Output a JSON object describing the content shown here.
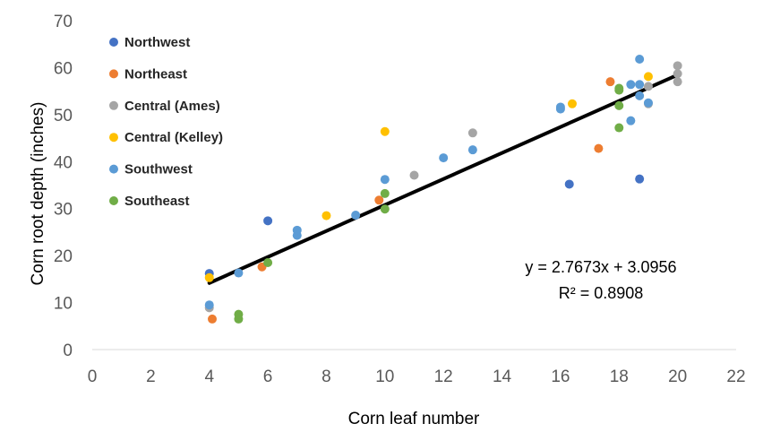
{
  "chart_data": {
    "type": "scatter",
    "xlabel": "Corn leaf number",
    "ylabel": "Corn root depth (inches)",
    "xlim": [
      0,
      22
    ],
    "ylim": [
      0,
      70
    ],
    "xticks": [
      "0",
      "2",
      "4",
      "6",
      "8",
      "10",
      "12",
      "14",
      "16",
      "18",
      "20",
      "22"
    ],
    "yticks": [
      "0",
      "10",
      "20",
      "30",
      "40",
      "50",
      "60",
      "70"
    ],
    "grid": false,
    "legend": "top-left",
    "series": [
      {
        "name": "Northwest",
        "color": "#4472C4",
        "points": [
          [
            4,
            16.2
          ],
          [
            6,
            27.4
          ],
          [
            16.3,
            35.2
          ],
          [
            18.7,
            36.3
          ]
        ]
      },
      {
        "name": "Northeast",
        "color": "#ED7D31",
        "points": [
          [
            4.1,
            6.5
          ],
          [
            5.8,
            17.6
          ],
          [
            9.8,
            31.8
          ],
          [
            17.3,
            42.8
          ],
          [
            17.7,
            57.0
          ]
        ]
      },
      {
        "name": "Central (Ames)",
        "color": "#A5A5A5",
        "points": [
          [
            4,
            8.9
          ],
          [
            11,
            37.1
          ],
          [
            13,
            46.1
          ],
          [
            19,
            52.3
          ],
          [
            19,
            56.0
          ],
          [
            20,
            57.0
          ],
          [
            20,
            60.4
          ],
          [
            20,
            58.7
          ]
        ]
      },
      {
        "name": "Central (Kelley)",
        "color": "#FFC000",
        "points": [
          [
            4,
            15.3
          ],
          [
            8,
            28.5
          ],
          [
            10,
            46.4
          ],
          [
            16.4,
            52.3
          ],
          [
            19,
            58.1
          ]
        ]
      },
      {
        "name": "Southwest",
        "color": "#5B9BD5",
        "points": [
          [
            4,
            9.5
          ],
          [
            5,
            16.3
          ],
          [
            7,
            24.3
          ],
          [
            7,
            25.4
          ],
          [
            9,
            28.6
          ],
          [
            10,
            36.2
          ],
          [
            12,
            40.8
          ],
          [
            13,
            42.5
          ],
          [
            16,
            51.2
          ],
          [
            16,
            51.6
          ],
          [
            18.4,
            48.7
          ],
          [
            18.4,
            56.4
          ],
          [
            18.7,
            56.4
          ],
          [
            18.7,
            54.0
          ],
          [
            18.7,
            61.8
          ],
          [
            19,
            52.5
          ]
        ]
      },
      {
        "name": "Southeast",
        "color": "#70AD47",
        "points": [
          [
            5,
            6.5
          ],
          [
            5,
            7.5
          ],
          [
            6,
            18.5
          ],
          [
            10,
            29.9
          ],
          [
            10,
            33.2
          ],
          [
            18,
            47.2
          ],
          [
            18,
            51.9
          ],
          [
            18,
            55.2
          ],
          [
            18,
            55.6
          ]
        ]
      }
    ],
    "trendline": {
      "slope": 2.7673,
      "intercept": 3.0956,
      "x_range": [
        4,
        20
      ],
      "color": "#000000",
      "equation_label": "y = 2.7673x + 3.0956",
      "r2_label": "R² = 0.8908"
    }
  }
}
